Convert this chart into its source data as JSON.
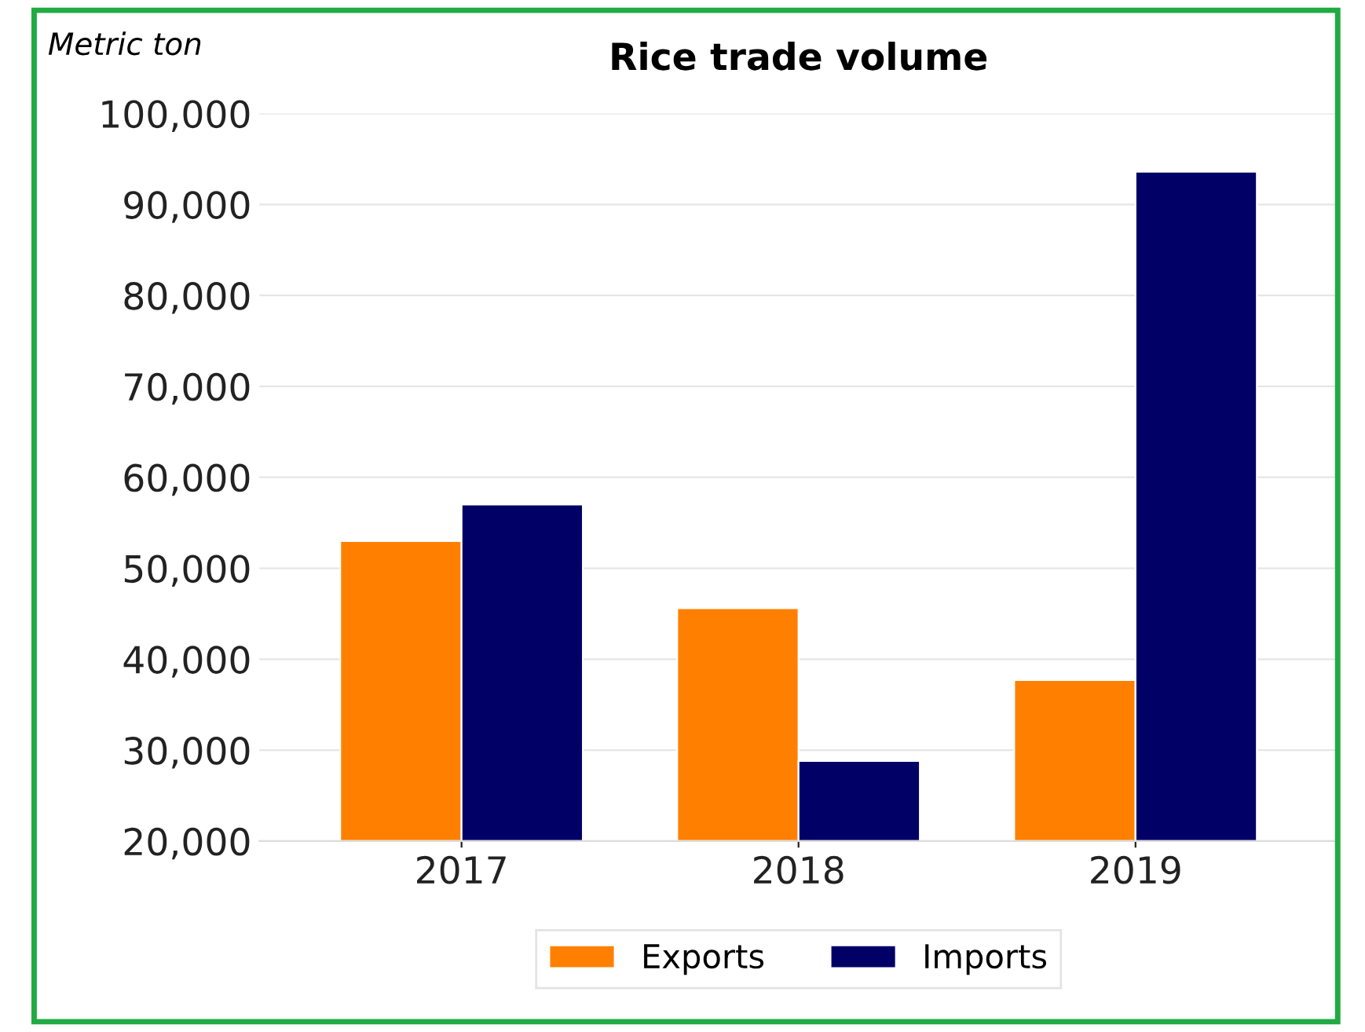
{
  "chart_data": {
    "type": "bar",
    "title": "Rice trade volume",
    "ylabel": "Metric ton",
    "categories": [
      "2017",
      "2018",
      "2019"
    ],
    "series": [
      {
        "name": "Exports",
        "color": "#ff8000",
        "values": [
          53000,
          45600,
          37700
        ]
      },
      {
        "name": "Imports",
        "color": "#000066",
        "values": [
          57000,
          28800,
          93600
        ]
      }
    ],
    "ylim": [
      20000,
      100000
    ],
    "yticks": [
      {
        "value": 20000,
        "label": "20,000"
      },
      {
        "value": 30000,
        "label": "30,000"
      },
      {
        "value": 40000,
        "label": "40,000"
      },
      {
        "value": 50000,
        "label": "50,000"
      },
      {
        "value": 60000,
        "label": "60,000"
      },
      {
        "value": 70000,
        "label": "70,000"
      },
      {
        "value": 80000,
        "label": "80,000"
      },
      {
        "value": 90000,
        "label": "90,000"
      },
      {
        "value": 100000,
        "label": "100,000"
      }
    ],
    "grid": "y",
    "legend": "bottom"
  }
}
